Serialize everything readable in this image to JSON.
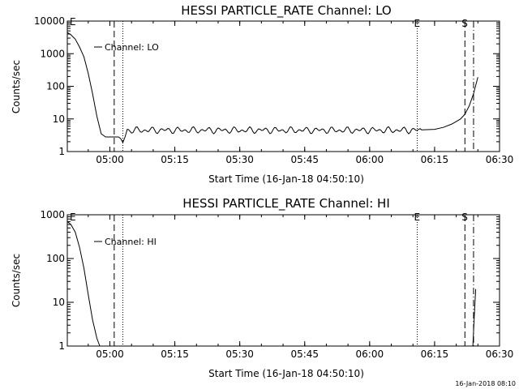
{
  "chart_data": [
    {
      "type": "line",
      "title": "HESSI PARTICLE_RATE Channel: LO",
      "xlabel": "Start Time (16-Jan-18 04:50:10)",
      "ylabel": "Counts/sec",
      "yscale": "log",
      "ylim": [
        1,
        10000
      ],
      "ytick_labels": [
        "1",
        "10",
        "100",
        "1000",
        "10000"
      ],
      "ytick_values": [
        1,
        10,
        100,
        1000,
        10000
      ],
      "xlim": [
        "04:50:10",
        "06:30:00"
      ],
      "xtick_labels": [
        "05:00",
        "05:15",
        "05:30",
        "05:45",
        "06:00",
        "06:15",
        "06:30"
      ],
      "xtick_values": [
        "05:00",
        "05:15",
        "05:30",
        "05:45",
        "06:00",
        "06:15",
        "06:30"
      ],
      "series": [
        {
          "name": "Channel: LO",
          "color": "#000000",
          "x": [
            "04:50:10",
            "04:51:00",
            "04:52:00",
            "04:53:00",
            "04:54:00",
            "04:55:00",
            "04:56:00",
            "04:57:00",
            "04:58:00",
            "04:59:00",
            "05:00:00",
            "05:01:00",
            "05:02:00",
            "05:02:30",
            "05:03:00",
            "05:03:30",
            "05:04:00",
            "05:05:00",
            "05:06:00",
            "05:10:00",
            "05:20:00",
            "05:30:00",
            "05:40:00",
            "05:50:00",
            "06:00:00",
            "06:05:00",
            "06:10:00",
            "06:12:00",
            "06:15:00",
            "06:17:00",
            "06:19:00",
            "06:21:00",
            "06:22:00",
            "06:23:00",
            "06:24:00",
            "06:25:00"
          ],
          "y": [
            4500,
            3800,
            2800,
            1600,
            800,
            250,
            60,
            12,
            3.5,
            2.8,
            2.8,
            2.8,
            2.8,
            2.5,
            1.9,
            2.8,
            3.5,
            4.5,
            4.2,
            4.5,
            4.6,
            4.4,
            4.7,
            4.5,
            4.4,
            4.3,
            4.5,
            4.6,
            4.8,
            5.5,
            7,
            10,
            14,
            25,
            60,
            190
          ]
        }
      ],
      "vlines": [
        {
          "x": "05:01:00",
          "style": "dashed"
        },
        {
          "x": "05:03:00",
          "style": "dotted"
        },
        {
          "x": "06:11:00",
          "style": "dotted",
          "label": "E"
        },
        {
          "x": "06:22:00",
          "style": "dashed",
          "label": "S"
        },
        {
          "x": "06:24:00",
          "style": "dashdot"
        }
      ],
      "start_marker": "E",
      "grid": false,
      "legend": "top-left"
    },
    {
      "type": "line",
      "title": "HESSI PARTICLE_RATE Channel: HI",
      "xlabel": "Start Time (16-Jan-18 04:50:10)",
      "ylabel": "Counts/sec",
      "yscale": "log",
      "ylim": [
        1,
        1000
      ],
      "ytick_labels": [
        "1",
        "10",
        "100",
        "1000"
      ],
      "ytick_values": [
        1,
        10,
        100,
        1000
      ],
      "xlim": [
        "04:50:10",
        "06:30:00"
      ],
      "xtick_labels": [
        "05:00",
        "05:15",
        "05:30",
        "05:45",
        "06:00",
        "06:15",
        "06:30"
      ],
      "xtick_values": [
        "05:00",
        "05:15",
        "05:30",
        "05:45",
        "06:00",
        "06:15",
        "06:30"
      ],
      "series": [
        {
          "name": "Channel: HI",
          "color": "#000000",
          "segments": [
            {
              "x": [
                "04:50:10",
                "04:51:00",
                "04:52:00",
                "04:53:00",
                "04:54:00",
                "04:55:00",
                "04:56:00",
                "04:57:00",
                "04:57:40"
              ],
              "y": [
                700,
                600,
                400,
                180,
                60,
                15,
                4,
                1.5,
                1
              ]
            },
            {
              "x": [
                "06:23:50",
                "06:24:10",
                "06:24:30"
              ],
              "y": [
                1,
                5,
                20
              ]
            }
          ]
        }
      ],
      "vlines": [
        {
          "x": "05:01:00",
          "style": "dashed"
        },
        {
          "x": "05:03:00",
          "style": "dotted"
        },
        {
          "x": "06:11:00",
          "style": "dotted",
          "label": "E"
        },
        {
          "x": "06:22:00",
          "style": "dashed",
          "label": "S"
        },
        {
          "x": "06:24:00",
          "style": "dashdot"
        }
      ],
      "start_marker": "E",
      "grid": false,
      "legend": "top-left"
    }
  ],
  "footer": "16-Jan-2018 08:10"
}
